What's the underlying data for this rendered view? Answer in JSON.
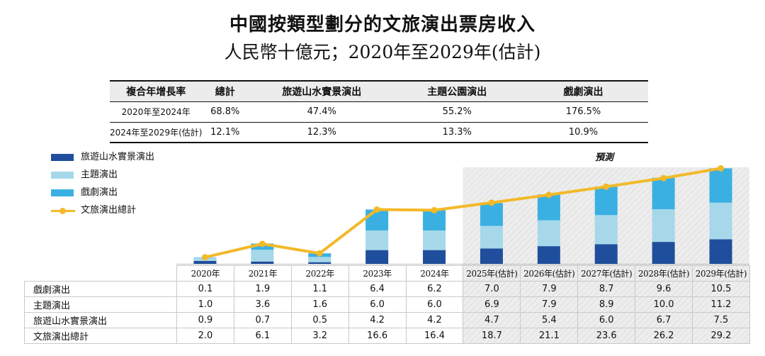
{
  "title": "中國按類型劃分的文旅演出票房收入",
  "subtitle": "人民幣十億元；2020年至2029年(估計)",
  "forecast_label": "預測",
  "cagr_table": {
    "headers": [
      "複合年增長率",
      "總計",
      "旅遊山水實景演出",
      "主題公園演出",
      "戲劇演出"
    ],
    "rows": [
      [
        "2020年至2024年",
        "68.8%",
        "47.4%",
        "55.2%",
        "176.5%"
      ],
      [
        "2024年至2029年(估計)",
        "12.1%",
        "12.3%",
        "13.3%",
        "10.9%"
      ]
    ]
  },
  "legend": [
    {
      "label": "旅遊山水實景演出",
      "color": "#1f4e9c"
    },
    {
      "label": "主題演出",
      "color": "#a6d8ea"
    },
    {
      "label": "戲劇演出",
      "color": "#3ab0e2"
    },
    {
      "label": "文旅演出總計",
      "color": "#f2b928"
    }
  ],
  "colors": {
    "landscape": "#1f4e9c",
    "theme": "#a6d8ea",
    "drama": "#3ab0e2",
    "total": "#f2b928",
    "forecast_bg": "#ededed"
  },
  "chart_data": {
    "type": "bar",
    "stacked": true,
    "title": "中國按類型劃分的文旅演出票房收入",
    "unit": "人民幣十億元",
    "categories": [
      "2020年",
      "2021年",
      "2022年",
      "2023年",
      "2024年",
      "2025年(估計)",
      "2026年(估計)",
      "2027年(估計)",
      "2028年(估計)",
      "2029年(估計)"
    ],
    "forecast_start_index": 5,
    "series": [
      {
        "name": "旅遊山水實景演出",
        "values": [
          0.9,
          0.7,
          0.5,
          4.2,
          4.2,
          4.7,
          5.4,
          6.0,
          6.7,
          7.5
        ]
      },
      {
        "name": "主題演出",
        "values": [
          1.0,
          3.6,
          1.6,
          6.0,
          6.0,
          6.9,
          7.9,
          8.9,
          10.0,
          11.2
        ]
      },
      {
        "name": "戲劇演出",
        "values": [
          0.1,
          1.9,
          1.1,
          6.4,
          6.2,
          7.0,
          7.9,
          8.7,
          9.6,
          10.5
        ]
      }
    ],
    "total_line": {
      "name": "文旅演出總計",
      "values": [
        2.0,
        6.1,
        3.2,
        16.6,
        16.4,
        18.7,
        21.1,
        23.6,
        26.2,
        29.2
      ]
    },
    "ylim": [
      0,
      30
    ],
    "table_rows": [
      {
        "label": "戲劇演出",
        "values": [
          "0.1",
          "1.9",
          "1.1",
          "6.4",
          "6.2",
          "7.0",
          "7.9",
          "8.7",
          "9.6",
          "10.5"
        ]
      },
      {
        "label": "主題演出",
        "values": [
          "1.0",
          "3.6",
          "1.6",
          "6.0",
          "6.0",
          "6.9",
          "7.9",
          "8.9",
          "10.0",
          "11.2"
        ]
      },
      {
        "label": "旅遊山水實景演出",
        "values": [
          "0.9",
          "0.7",
          "0.5",
          "4.2",
          "4.2",
          "4.7",
          "5.4",
          "6.0",
          "6.7",
          "7.5"
        ]
      },
      {
        "label": "文旅演出總計",
        "values": [
          "2.0",
          "6.1",
          "3.2",
          "16.6",
          "16.4",
          "18.7",
          "21.1",
          "23.6",
          "26.2",
          "29.2"
        ]
      }
    ]
  }
}
